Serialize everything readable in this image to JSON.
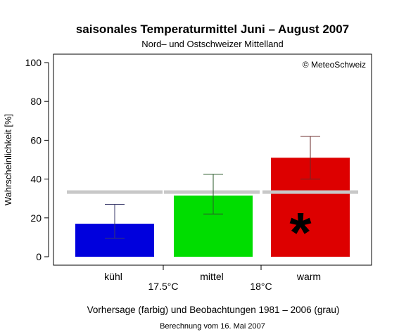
{
  "chart_data": {
    "type": "bar",
    "title": "saisonales Temperaturmittel Juni – August 2007",
    "subtitle": "Nord– und Ostschweizer Mittelland",
    "ylabel": "Wahrscheinlichkeit [%]",
    "xlabel": "Vorhersage (farbig) und Beobachtungen 1981 – 2006 (grau)",
    "note": "Berechnung vom 16. Mai 2007",
    "copyright": "© MeteoSchweiz",
    "ylim": [
      0,
      100
    ],
    "yticks": [
      0,
      20,
      40,
      60,
      80,
      100
    ],
    "categories": [
      "kühl",
      "mittel",
      "warm"
    ],
    "boundaries": [
      "17.5°C",
      "18°C"
    ],
    "values": [
      17,
      31.5,
      51
    ],
    "error_low": [
      9.5,
      22,
      40
    ],
    "error_high": [
      27,
      42.5,
      62
    ],
    "colors": [
      "#0000dd",
      "#00dd00",
      "#dd0000"
    ],
    "observed": [
      33.3,
      33.3,
      33.3
    ],
    "observed_color": "#c8c8c8",
    "marker": "*",
    "marker_category": "warm",
    "grid": false
  }
}
